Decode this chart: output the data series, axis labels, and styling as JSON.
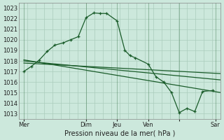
{
  "xlabel": "Pression niveau de la mer( hPa )",
  "bg_color": "#cce8dc",
  "grid_color": "#aaccbb",
  "line_color": "#1a5c2a",
  "xlim": [
    0,
    156
  ],
  "ylim": [
    1012.5,
    1023.5
  ],
  "yticks": [
    1013,
    1014,
    1015,
    1016,
    1017,
    1018,
    1019,
    1020,
    1021,
    1022,
    1023
  ],
  "day_ticks_x": [
    4,
    52,
    76,
    100,
    124,
    152
  ],
  "day_labels": [
    "Mer",
    "Dim",
    "Jeu",
    "Ven",
    "",
    "Sar"
  ],
  "vline_x": [
    4,
    52,
    76,
    100,
    124,
    152
  ],
  "series1_x": [
    4,
    10,
    16,
    22,
    28,
    34,
    40,
    46,
    52,
    58,
    63,
    68,
    76,
    82,
    86,
    90,
    100,
    106,
    112,
    118,
    124,
    130,
    136,
    142,
    150
  ],
  "series1_y": [
    1017.0,
    1017.5,
    1018.1,
    1018.9,
    1019.5,
    1019.7,
    1020.0,
    1020.3,
    1022.1,
    1022.55,
    1022.5,
    1022.5,
    1021.8,
    1019.0,
    1018.5,
    1018.3,
    1017.7,
    1016.5,
    1016.0,
    1015.0,
    1013.1,
    1013.5,
    1013.2,
    1015.1,
    1015.2
  ],
  "series2_x": [
    4,
    156
  ],
  "series2_y": [
    1018.1,
    1015.0
  ],
  "series3_x": [
    4,
    156
  ],
  "series3_y": [
    1018.0,
    1016.2
  ],
  "series4_x": [
    4,
    156
  ],
  "series4_y": [
    1017.8,
    1016.8
  ]
}
